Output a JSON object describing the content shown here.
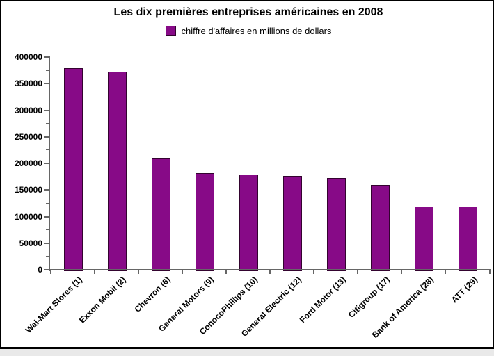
{
  "chart_data": {
    "type": "bar",
    "title": "Les dix premières entreprises américaines en 2008",
    "legend": "chiffre d'affaires en millions de dollars",
    "categories": [
      "Wal-Mart Stores (1)",
      "Exxon Mobil (2)",
      "Chevron (6)",
      "General Motors (9)",
      "ConocoPhillips (10)",
      "General Electric (12)",
      "Ford Motor (13)",
      "Citigroup (17)",
      "Bank of America (28)",
      "ATT (29)"
    ],
    "values": [
      378800,
      372800,
      210800,
      182300,
      178600,
      176700,
      172500,
      159200,
      119200,
      118900
    ],
    "xlabel": "",
    "ylabel": "",
    "ylim": [
      0,
      400000
    ],
    "yticks": [
      0,
      50000,
      100000,
      150000,
      200000,
      250000,
      300000,
      350000,
      400000
    ],
    "ytick_interval": 50000,
    "minor_tick_interval": 25000,
    "grid": false,
    "legend_position": "top",
    "bar_color": "#870a87",
    "bar_border_color": "#33032f",
    "axis_color": "#666666",
    "frame_border_color": "#000000",
    "page_background_color": "#e9e9e9"
  }
}
